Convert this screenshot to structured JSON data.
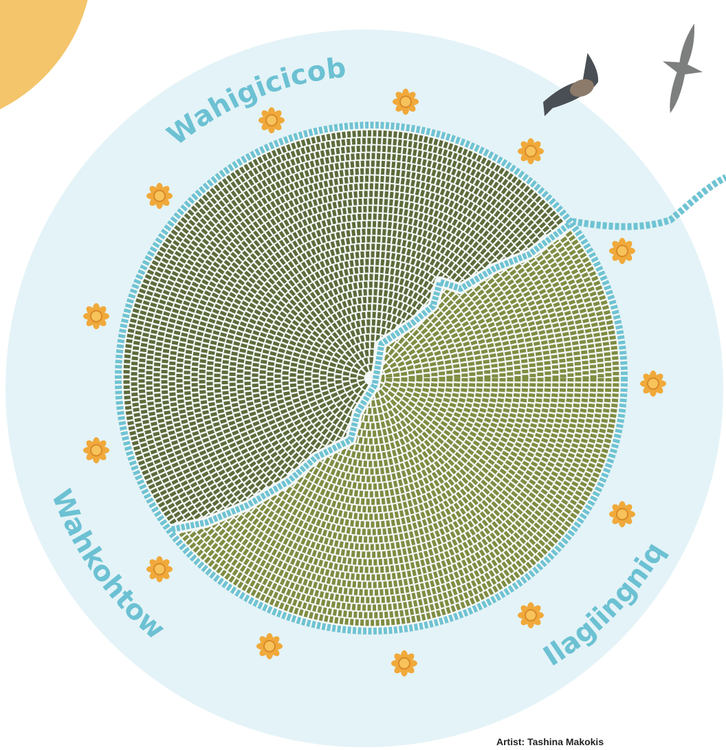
{
  "labels": {
    "top": "Wahigicicobi",
    "left": "Wahkohtowin",
    "right": "Ilagiingniq"
  },
  "credit": "Artist: Tashina Makokis"
}
